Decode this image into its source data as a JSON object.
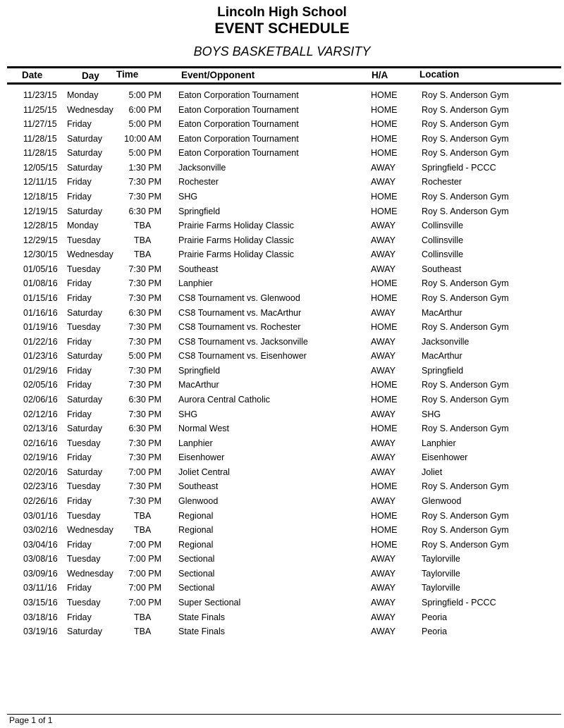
{
  "header": {
    "school": "Lincoln High School",
    "title": "EVENT SCHEDULE",
    "subtitle": "BOYS BASKETBALL VARSITY"
  },
  "columns": {
    "date": "Date",
    "day": "Day",
    "time": "Time",
    "event": "Event/Opponent",
    "ha": "H/A",
    "location": "Location"
  },
  "rows": [
    [
      "11/23/15",
      "Monday",
      "5:00 PM",
      "Eaton Corporation Tournament",
      "HOME",
      "Roy S. Anderson Gym"
    ],
    [
      "11/25/15",
      "Wednesday",
      "6:00 PM",
      "Eaton Corporation Tournament",
      "HOME",
      "Roy S. Anderson Gym"
    ],
    [
      "11/27/15",
      "Friday",
      "5:00 PM",
      "Eaton Corporation Tournament",
      "HOME",
      "Roy S. Anderson Gym"
    ],
    [
      "11/28/15",
      "Saturday",
      "10:00 AM",
      "Eaton Corporation Tournament",
      "HOME",
      "Roy S. Anderson Gym"
    ],
    [
      "11/28/15",
      "Saturday",
      "5:00 PM",
      "Eaton Corporation Tournament",
      "HOME",
      "Roy S. Anderson Gym"
    ],
    [
      "12/05/15",
      "Saturday",
      "1:30 PM",
      "Jacksonville",
      "AWAY",
      "Springfield - PCCC"
    ],
    [
      "12/11/15",
      "Friday",
      "7:30 PM",
      "Rochester",
      "AWAY",
      "Rochester"
    ],
    [
      "12/18/15",
      "Friday",
      "7:30 PM",
      "SHG",
      "HOME",
      "Roy S. Anderson Gym"
    ],
    [
      "12/19/15",
      "Saturday",
      "6:30 PM",
      "Springfield",
      "HOME",
      "Roy S. Anderson Gym"
    ],
    [
      "12/28/15",
      "Monday",
      "TBA",
      "Prairie Farms Holiday Classic",
      "AWAY",
      "Collinsville"
    ],
    [
      "12/29/15",
      "Tuesday",
      "TBA",
      "Prairie Farms Holiday Classic",
      "AWAY",
      "Collinsville"
    ],
    [
      "12/30/15",
      "Wednesday",
      "TBA",
      "Prairie Farms Holiday Classic",
      "AWAY",
      "Collinsville"
    ],
    [
      "01/05/16",
      "Tuesday",
      "7:30 PM",
      "Southeast",
      "AWAY",
      "Southeast"
    ],
    [
      "01/08/16",
      "Friday",
      "7:30 PM",
      "Lanphier",
      "HOME",
      "Roy S. Anderson Gym"
    ],
    [
      "01/15/16",
      "Friday",
      "7:30 PM",
      "CS8 Tournament vs. Glenwood",
      "HOME",
      "Roy S. Anderson Gym"
    ],
    [
      "01/16/16",
      "Saturday",
      "6:30 PM",
      "CS8 Tournament vs. MacArthur",
      "AWAY",
      "MacArthur"
    ],
    [
      "01/19/16",
      "Tuesday",
      "7:30 PM",
      "CS8 Tournament vs. Rochester",
      "HOME",
      "Roy S. Anderson Gym"
    ],
    [
      "01/22/16",
      "Friday",
      "7:30 PM",
      "CS8 Tournament vs. Jacksonville",
      "AWAY",
      "Jacksonville"
    ],
    [
      "01/23/16",
      "Saturday",
      "5:00 PM",
      "CS8 Tournament vs. Eisenhower",
      "AWAY",
      "MacArthur"
    ],
    [
      "01/29/16",
      "Friday",
      "7:30 PM",
      "Springfield",
      "AWAY",
      "Springfield"
    ],
    [
      "02/05/16",
      "Friday",
      "7:30 PM",
      "MacArthur",
      "HOME",
      "Roy S. Anderson Gym"
    ],
    [
      "02/06/16",
      "Saturday",
      "6:30 PM",
      "Aurora Central Catholic",
      "HOME",
      "Roy S. Anderson Gym"
    ],
    [
      "02/12/16",
      "Friday",
      "7:30 PM",
      "SHG",
      "AWAY",
      "SHG"
    ],
    [
      "02/13/16",
      "Saturday",
      "6:30 PM",
      "Normal West",
      "HOME",
      "Roy S. Anderson Gym"
    ],
    [
      "02/16/16",
      "Tuesday",
      "7:30 PM",
      "Lanphier",
      "AWAY",
      "Lanphier"
    ],
    [
      "02/19/16",
      "Friday",
      "7:30 PM",
      "Eisenhower",
      "AWAY",
      "Eisenhower"
    ],
    [
      "02/20/16",
      "Saturday",
      "7:00 PM",
      "Joliet Central",
      "AWAY",
      "Joliet"
    ],
    [
      "02/23/16",
      "Tuesday",
      "7:30 PM",
      "Southeast",
      "HOME",
      "Roy S. Anderson Gym"
    ],
    [
      "02/26/16",
      "Friday",
      "7:30 PM",
      "Glenwood",
      "AWAY",
      "Glenwood"
    ],
    [
      "03/01/16",
      "Tuesday",
      "TBA",
      "Regional",
      "HOME",
      "Roy S. Anderson Gym"
    ],
    [
      "03/02/16",
      "Wednesday",
      "TBA",
      "Regional",
      "HOME",
      "Roy S. Anderson Gym"
    ],
    [
      "03/04/16",
      "Friday",
      "7:00 PM",
      "Regional",
      "HOME",
      "Roy S. Anderson Gym"
    ],
    [
      "03/08/16",
      "Tuesday",
      "7:00 PM",
      "Sectional",
      "AWAY",
      "Taylorville"
    ],
    [
      "03/09/16",
      "Wednesday",
      "7:00 PM",
      "Sectional",
      "AWAY",
      "Taylorville"
    ],
    [
      "03/11/16",
      "Friday",
      "7:00 PM",
      "Sectional",
      "AWAY",
      "Taylorville"
    ],
    [
      "03/15/16",
      "Tuesday",
      "7:00 PM",
      "Super Sectional",
      "AWAY",
      "Springfield - PCCC"
    ],
    [
      "03/18/16",
      "Friday",
      "TBA",
      "State Finals",
      "AWAY",
      "Peoria"
    ],
    [
      "03/19/16",
      "Saturday",
      "TBA",
      "State Finals",
      "AWAY",
      "Peoria"
    ]
  ],
  "footer": {
    "page": "Page 1 of 1"
  }
}
